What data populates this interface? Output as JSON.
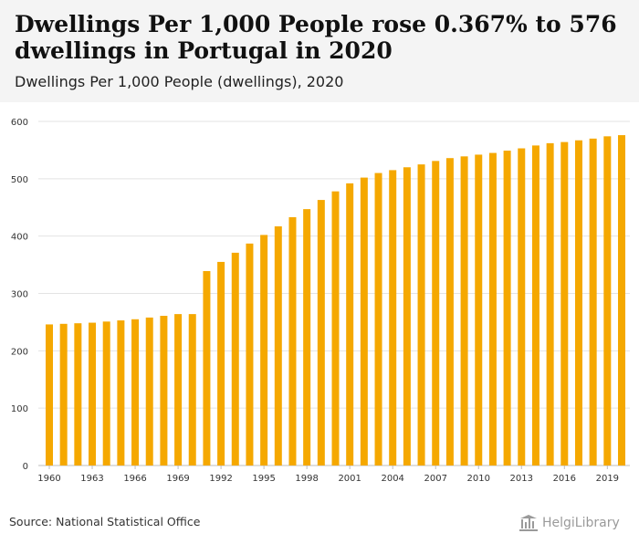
{
  "header": {
    "title": "Dwellings Per 1,000 People rose 0.367% to 576 dwellings in Portugal in 2020",
    "subtitle": "Dwellings Per 1,000 People (dwellings), 2020"
  },
  "footer": {
    "source": "Source: National Statistical Office",
    "logo_text": "HelgiLibrary"
  },
  "colors": {
    "bar": "#f5a800",
    "header_bg": "#f4f4f4",
    "grid": "#e3e3e3"
  },
  "chart_data": {
    "type": "bar",
    "title": "Dwellings Per 1,000 People rose 0.367% to 576 dwellings in Portugal in 2020",
    "subtitle": "Dwellings Per 1,000 People (dwellings), 2020",
    "xlabel": "",
    "ylabel": "",
    "ylim": [
      0,
      600
    ],
    "yticks": [
      0,
      100,
      200,
      300,
      400,
      500,
      600
    ],
    "xtick_labels": [
      "1960",
      "1963",
      "1966",
      "1969",
      "1992",
      "1995",
      "1998",
      "2001",
      "2004",
      "2007",
      "2010",
      "2013",
      "2016",
      "2019"
    ],
    "grid": true,
    "categories": [
      "1960",
      "1961",
      "1962",
      "1963",
      "1964",
      "1965",
      "1966",
      "1967",
      "1968",
      "1969",
      "1970",
      "1991",
      "1992",
      "1993",
      "1994",
      "1995",
      "1996",
      "1997",
      "1998",
      "1999",
      "2000",
      "2001",
      "2002",
      "2003",
      "2004",
      "2005",
      "2006",
      "2007",
      "2008",
      "2009",
      "2010",
      "2011",
      "2012",
      "2013",
      "2014",
      "2015",
      "2016",
      "2017",
      "2018",
      "2019",
      "2020"
    ],
    "values": [
      246,
      247,
      248,
      249,
      251,
      253,
      255,
      258,
      261,
      264,
      264,
      339,
      355,
      371,
      387,
      402,
      417,
      433,
      447,
      463,
      478,
      492,
      502,
      510,
      515,
      520,
      525,
      531,
      536,
      539,
      542,
      545,
      549,
      553,
      558,
      562,
      564,
      567,
      570,
      574,
      576
    ]
  }
}
